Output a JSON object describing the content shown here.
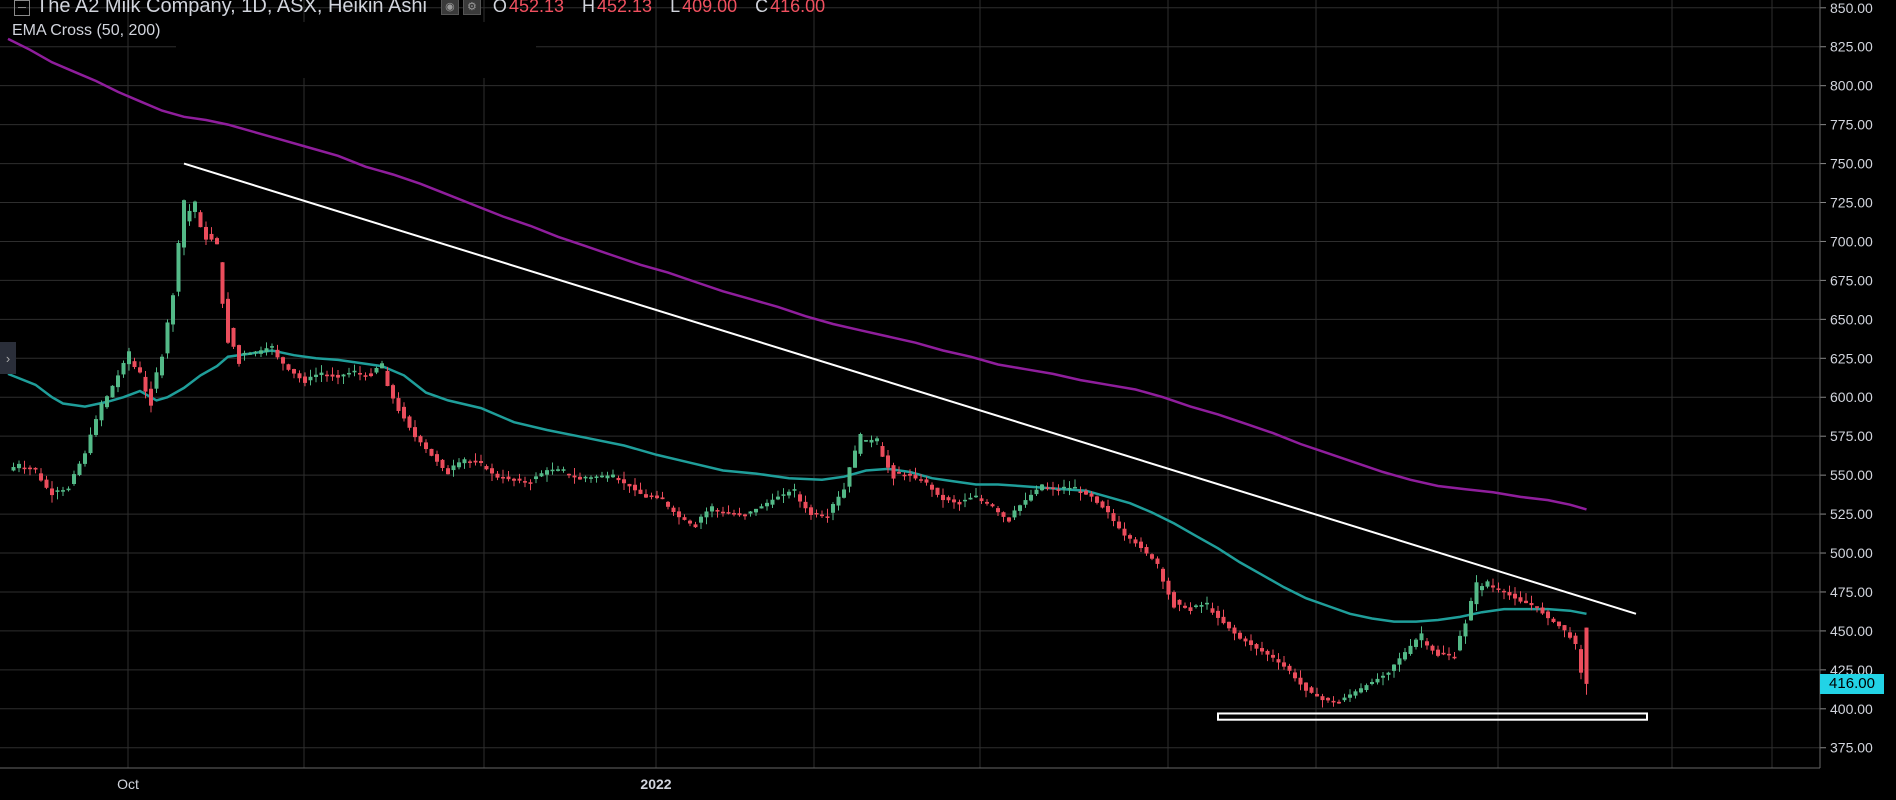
{
  "header": {
    "title": "The A2 Milk Company, 1D, ASX, Heikin Ashi",
    "ohlc": [
      {
        "key": "O",
        "value": "452.13"
      },
      {
        "key": "H",
        "value": "452.13"
      },
      {
        "key": "L",
        "value": "409.00"
      },
      {
        "key": "C",
        "value": "416.00"
      }
    ],
    "study_label": "EMA Cross (50, 200)",
    "side_tab_glyph": "›"
  },
  "current_price_label": "416.00",
  "colors": {
    "up": "#53b987",
    "down": "#eb4d5c",
    "ema_fast": "#1f9e9a",
    "ema_slow": "#8f1e9c",
    "trendline": "#ffffff",
    "grid": "#2e2e2e",
    "price_tag": "#22d3e6"
  },
  "chart_data": {
    "type": "candlestick",
    "style": "Heikin Ashi",
    "ylim": [
      362,
      855
    ],
    "y_ticks": [
      375,
      400,
      425,
      450,
      475,
      500,
      525,
      550,
      575,
      600,
      625,
      650,
      675,
      700,
      725,
      750,
      775,
      800,
      825,
      850
    ],
    "x_labels": [
      "Oct",
      "2022"
    ],
    "grid": true,
    "anchors": [
      [
        0,
        552
      ],
      [
        2,
        556
      ],
      [
        5,
        554
      ],
      [
        8,
        540
      ],
      [
        11,
        540
      ],
      [
        14,
        560
      ],
      [
        17,
        590
      ],
      [
        20,
        610
      ],
      [
        22,
        625
      ],
      [
        24,
        618
      ],
      [
        26,
        600
      ],
      [
        28,
        620
      ],
      [
        30,
        655
      ],
      [
        32,
        710
      ],
      [
        34,
        722
      ],
      [
        36,
        706
      ],
      [
        38,
        700
      ],
      [
        40,
        650
      ],
      [
        42,
        628
      ],
      [
        45,
        628
      ],
      [
        48,
        632
      ],
      [
        51,
        620
      ],
      [
        54,
        611
      ],
      [
        57,
        615
      ],
      [
        60,
        613
      ],
      [
        63,
        616
      ],
      [
        66,
        614
      ],
      [
        68,
        620
      ],
      [
        71,
        596
      ],
      [
        74,
        578
      ],
      [
        77,
        565
      ],
      [
        80,
        553
      ],
      [
        83,
        559
      ],
      [
        86,
        558
      ],
      [
        89,
        550
      ],
      [
        92,
        547
      ],
      [
        95,
        546
      ],
      [
        98,
        552
      ],
      [
        101,
        552
      ],
      [
        104,
        548
      ],
      [
        107,
        548
      ],
      [
        110,
        550
      ],
      [
        113,
        544
      ],
      [
        116,
        537
      ],
      [
        119,
        535
      ],
      [
        122,
        525
      ],
      [
        125,
        518
      ],
      [
        128,
        528
      ],
      [
        131,
        526
      ],
      [
        134,
        524
      ],
      [
        137,
        529
      ],
      [
        140,
        535
      ],
      [
        143,
        540
      ],
      [
        146,
        527
      ],
      [
        149,
        524
      ],
      [
        152,
        538
      ],
      [
        155,
        570
      ],
      [
        158,
        573
      ],
      [
        161,
        552
      ],
      [
        164,
        550
      ],
      [
        167,
        546
      ],
      [
        170,
        536
      ],
      [
        173,
        532
      ],
      [
        176,
        536
      ],
      [
        179,
        531
      ],
      [
        182,
        522
      ],
      [
        185,
        532
      ],
      [
        188,
        542
      ],
      [
        191,
        541
      ],
      [
        194,
        541
      ],
      [
        197,
        537
      ],
      [
        200,
        528
      ],
      [
        203,
        514
      ],
      [
        206,
        505
      ],
      [
        209,
        495
      ],
      [
        212,
        470
      ],
      [
        215,
        464
      ],
      [
        218,
        467
      ],
      [
        221,
        457
      ],
      [
        224,
        447
      ],
      [
        227,
        440
      ],
      [
        230,
        434
      ],
      [
        233,
        426
      ],
      [
        236,
        414
      ],
      [
        239,
        407
      ],
      [
        242,
        404
      ],
      [
        245,
        410
      ],
      [
        248,
        416
      ],
      [
        251,
        422
      ],
      [
        254,
        434
      ],
      [
        257,
        446
      ],
      [
        260,
        436
      ],
      [
        263,
        434
      ],
      [
        265,
        450
      ],
      [
        267,
        474
      ],
      [
        269,
        480
      ],
      [
        272,
        476
      ],
      [
        275,
        470
      ],
      [
        278,
        466
      ],
      [
        280,
        460
      ],
      [
        283,
        452
      ],
      [
        285,
        444
      ],
      [
        287,
        418
      ]
    ],
    "ema_fast": [
      [
        0,
        615
      ],
      [
        5,
        608
      ],
      [
        8,
        600
      ],
      [
        10,
        596
      ],
      [
        14,
        594
      ],
      [
        18,
        597
      ],
      [
        21,
        600
      ],
      [
        24,
        604
      ],
      [
        27,
        598
      ],
      [
        29,
        600
      ],
      [
        32,
        606
      ],
      [
        35,
        614
      ],
      [
        38,
        620
      ],
      [
        40,
        626
      ],
      [
        44,
        628
      ],
      [
        48,
        630
      ],
      [
        52,
        627
      ],
      [
        56,
        625
      ],
      [
        60,
        624
      ],
      [
        64,
        622
      ],
      [
        68,
        620
      ],
      [
        72,
        614
      ],
      [
        76,
        603
      ],
      [
        80,
        598
      ],
      [
        86,
        593
      ],
      [
        92,
        584
      ],
      [
        98,
        579
      ],
      [
        105,
        574
      ],
      [
        112,
        569
      ],
      [
        118,
        563
      ],
      [
        124,
        558
      ],
      [
        130,
        553
      ],
      [
        136,
        551
      ],
      [
        142,
        548
      ],
      [
        148,
        547
      ],
      [
        152,
        549
      ],
      [
        156,
        553
      ],
      [
        160,
        554
      ],
      [
        164,
        552
      ],
      [
        168,
        548
      ],
      [
        172,
        546
      ],
      [
        176,
        544
      ],
      [
        180,
        544
      ],
      [
        184,
        543
      ],
      [
        188,
        542
      ],
      [
        192,
        541
      ],
      [
        196,
        540
      ],
      [
        200,
        536
      ],
      [
        204,
        532
      ],
      [
        208,
        526
      ],
      [
        212,
        519
      ],
      [
        216,
        511
      ],
      [
        220,
        503
      ],
      [
        224,
        494
      ],
      [
        228,
        486
      ],
      [
        232,
        478
      ],
      [
        236,
        471
      ],
      [
        240,
        466
      ],
      [
        244,
        461
      ],
      [
        248,
        458
      ],
      [
        252,
        456
      ],
      [
        256,
        456
      ],
      [
        260,
        457
      ],
      [
        264,
        459
      ],
      [
        268,
        462
      ],
      [
        272,
        464
      ],
      [
        276,
        464
      ],
      [
        280,
        464
      ],
      [
        284,
        463
      ],
      [
        287,
        461
      ]
    ],
    "ema_slow": [
      [
        0,
        830
      ],
      [
        4,
        823
      ],
      [
        8,
        815
      ],
      [
        12,
        809
      ],
      [
        16,
        803
      ],
      [
        20,
        796
      ],
      [
        24,
        790
      ],
      [
        28,
        784
      ],
      [
        32,
        780
      ],
      [
        36,
        778
      ],
      [
        40,
        775
      ],
      [
        45,
        770
      ],
      [
        50,
        765
      ],
      [
        55,
        760
      ],
      [
        60,
        755
      ],
      [
        65,
        748
      ],
      [
        70,
        743
      ],
      [
        75,
        737
      ],
      [
        80,
        730
      ],
      [
        85,
        723
      ],
      [
        90,
        716
      ],
      [
        95,
        710
      ],
      [
        100,
        703
      ],
      [
        105,
        697
      ],
      [
        110,
        691
      ],
      [
        115,
        685
      ],
      [
        120,
        680
      ],
      [
        125,
        674
      ],
      [
        130,
        668
      ],
      [
        135,
        663
      ],
      [
        140,
        658
      ],
      [
        145,
        652
      ],
      [
        150,
        647
      ],
      [
        155,
        643
      ],
      [
        160,
        639
      ],
      [
        165,
        635
      ],
      [
        170,
        630
      ],
      [
        175,
        626
      ],
      [
        180,
        621
      ],
      [
        185,
        618
      ],
      [
        190,
        615
      ],
      [
        195,
        611
      ],
      [
        200,
        608
      ],
      [
        205,
        605
      ],
      [
        210,
        600
      ],
      [
        215,
        594
      ],
      [
        220,
        589
      ],
      [
        225,
        583
      ],
      [
        230,
        577
      ],
      [
        235,
        570
      ],
      [
        240,
        564
      ],
      [
        245,
        558
      ],
      [
        250,
        552
      ],
      [
        255,
        547
      ],
      [
        260,
        543
      ],
      [
        265,
        541
      ],
      [
        270,
        539
      ],
      [
        275,
        536
      ],
      [
        280,
        534
      ],
      [
        284,
        531
      ],
      [
        287,
        528
      ]
    ],
    "last_candle": {
      "open": 452.13,
      "high": 452.13,
      "low": 409.0,
      "close": 416.0
    },
    "trendline": {
      "from": [
        32,
        750
      ],
      "to": [
        296,
        461
      ]
    },
    "support_zone": {
      "from": 220,
      "to": 298,
      "low": 393,
      "high": 397
    },
    "n_bars": 288
  }
}
